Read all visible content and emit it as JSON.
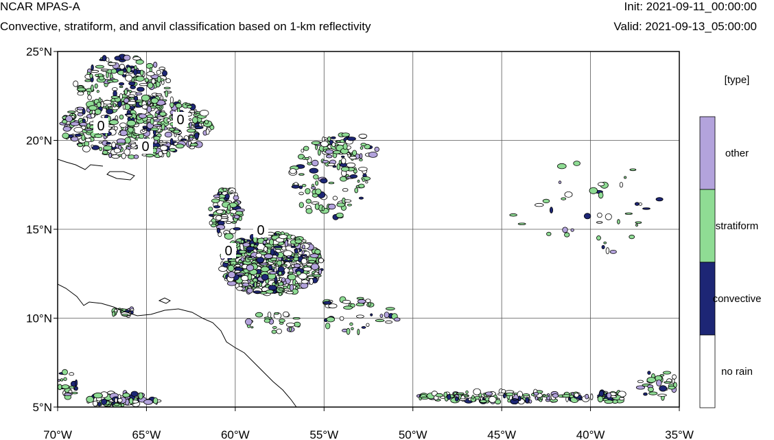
{
  "header": {
    "title": "NCAR MPAS-A",
    "subtitle": "Convective, stratiform, and anvil classification based on 1-km reflectivity",
    "init": "Init: 2021-09-11_00:00:00",
    "valid": "Valid: 2021-09-13_05:00:00"
  },
  "map": {
    "lon_ticks": [
      "70°W",
      "65°W",
      "60°W",
      "55°W",
      "50°W",
      "45°W",
      "40°W",
      "35°W"
    ],
    "lat_ticks": [
      "25°N",
      "20°N",
      "15°N",
      "10°N",
      "5°N"
    ],
    "lon_range": [
      -70,
      -35
    ],
    "lat_range": [
      5,
      25
    ],
    "gridlines": true,
    "contour_labels": [
      "0",
      "0",
      "0",
      "0",
      "0"
    ]
  },
  "legend": {
    "title": "[type]",
    "placement": "right",
    "classes": [
      {
        "label": "other",
        "color": "#b3a3dc"
      },
      {
        "label": "stratiform",
        "color": "#8fdc94"
      },
      {
        "label": "convective",
        "color": "#1d2675"
      },
      {
        "label": "no rain",
        "color": "#ffffff"
      }
    ]
  }
}
